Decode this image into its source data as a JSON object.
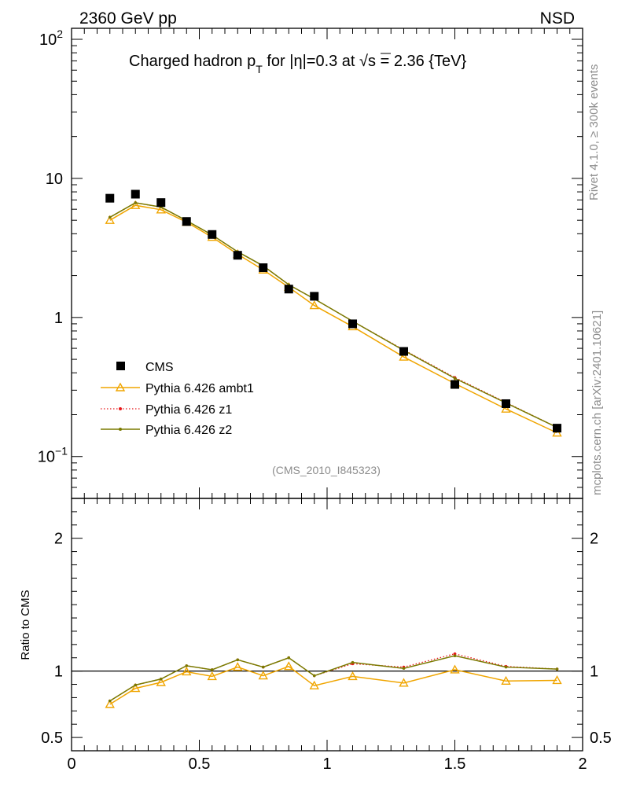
{
  "header": {
    "left": "2360 GeV pp",
    "right": "NSD"
  },
  "side_labels": {
    "rivet": "Rivet 4.1.0, ≥ 300k events",
    "mcplots": "mcplots.cern.ch [arXiv:2401.10621]"
  },
  "chart_data": [
    {
      "type": "line",
      "title_parts": {
        "pre": "Charged hadron p",
        "sub": "T",
        "mid": " for |η|=0.3 at ",
        "sqrt": "√s",
        "post": " = 2.36 {TeV}"
      },
      "watermark": "(CMS_2010_I845323)",
      "yscale": "log",
      "xlim": [
        0,
        2
      ],
      "ylim": [
        0.05,
        120
      ],
      "y_ticks": [
        {
          "value": 0.1,
          "base": "10",
          "exp": "−1"
        },
        {
          "value": 1,
          "base": "1",
          "exp": ""
        },
        {
          "value": 10,
          "base": "10",
          "exp": ""
        },
        {
          "value": 100,
          "base": "10",
          "exp": "2"
        }
      ],
      "legend_position": "bottom-left",
      "series": [
        {
          "name": "CMS",
          "style": "data-square",
          "color": "#000000",
          "x": [
            0.15,
            0.25,
            0.35,
            0.45,
            0.55,
            0.65,
            0.75,
            0.85,
            0.95,
            1.1,
            1.3,
            1.5,
            1.7,
            1.9
          ],
          "y": [
            7.2,
            7.7,
            6.7,
            4.9,
            3.95,
            2.8,
            2.28,
            1.6,
            1.42,
            0.9,
            0.57,
            0.33,
            0.24,
            0.16
          ]
        },
        {
          "name": "Pythia 6.426 ambt1",
          "style": "triangle",
          "color": "#f0a500",
          "x": [
            0.15,
            0.25,
            0.35,
            0.45,
            0.55,
            0.65,
            0.75,
            0.85,
            0.95,
            1.1,
            1.3,
            1.5,
            1.7,
            1.9
          ],
          "y": [
            5.0,
            6.4,
            5.95,
            4.85,
            3.78,
            2.85,
            2.2,
            1.65,
            1.22,
            0.86,
            0.52,
            0.335,
            0.22,
            0.148
          ]
        },
        {
          "name": "Pythia 6.426 z1",
          "style": "dotted",
          "color": "#e8181a",
          "x": [
            0.15,
            0.25,
            0.35,
            0.45,
            0.55,
            0.65,
            0.75,
            0.85,
            0.95,
            1.1,
            1.3,
            1.5,
            1.7,
            1.9
          ],
          "y": [
            5.25,
            6.68,
            6.22,
            4.97,
            3.92,
            2.97,
            2.35,
            1.72,
            1.36,
            0.94,
            0.585,
            0.37,
            0.245,
            0.162
          ]
        },
        {
          "name": "Pythia 6.426 z2",
          "style": "solid-dot",
          "color": "#7a7a00",
          "x": [
            0.15,
            0.25,
            0.35,
            0.45,
            0.55,
            0.65,
            0.75,
            0.85,
            0.95,
            1.1,
            1.3,
            1.5,
            1.7,
            1.9
          ],
          "y": [
            5.25,
            6.68,
            6.22,
            4.97,
            3.92,
            2.97,
            2.35,
            1.72,
            1.36,
            0.94,
            0.58,
            0.365,
            0.243,
            0.162
          ]
        }
      ]
    },
    {
      "type": "line",
      "ylabel": "Ratio to CMS",
      "xlim": [
        0,
        2
      ],
      "ylim": [
        0.4,
        2.3
      ],
      "y_ticks": [
        0.5,
        1,
        2
      ],
      "y_tick_labels": [
        "0.5",
        "1",
        "2"
      ],
      "x_ticks": [
        0,
        0.5,
        1,
        1.5,
        2
      ],
      "x_tick_labels": [
        "0",
        "0.5",
        "1",
        "1.5",
        "2"
      ],
      "reference_line": 1,
      "series": [
        {
          "name": "Pythia 6.426 ambt1",
          "style": "triangle",
          "color": "#f0a500",
          "x": [
            0.15,
            0.25,
            0.35,
            0.45,
            0.55,
            0.65,
            0.75,
            0.85,
            0.95,
            1.1,
            1.3,
            1.5,
            1.7,
            1.9
          ],
          "y": [
            0.75,
            0.87,
            0.915,
            0.995,
            0.96,
            1.03,
            0.965,
            1.035,
            0.89,
            0.96,
            0.91,
            1.01,
            0.925,
            0.93
          ]
        },
        {
          "name": "Pythia 6.426 z1",
          "style": "dotted",
          "color": "#e8181a",
          "x": [
            0.15,
            0.25,
            0.35,
            0.45,
            0.55,
            0.65,
            0.75,
            0.85,
            0.95,
            1.1,
            1.3,
            1.5,
            1.7,
            1.9
          ],
          "y": [
            0.775,
            0.895,
            0.94,
            1.04,
            1.01,
            1.085,
            1.03,
            1.1,
            0.965,
            1.055,
            1.03,
            1.13,
            1.035,
            1.015
          ]
        },
        {
          "name": "Pythia 6.426 z2",
          "style": "solid-dot",
          "color": "#7a7a00",
          "x": [
            0.15,
            0.25,
            0.35,
            0.45,
            0.55,
            0.65,
            0.75,
            0.85,
            0.95,
            1.1,
            1.3,
            1.5,
            1.7,
            1.9
          ],
          "y": [
            0.775,
            0.895,
            0.94,
            1.04,
            1.01,
            1.085,
            1.03,
            1.1,
            0.965,
            1.065,
            1.02,
            1.115,
            1.03,
            1.015
          ]
        }
      ]
    }
  ]
}
